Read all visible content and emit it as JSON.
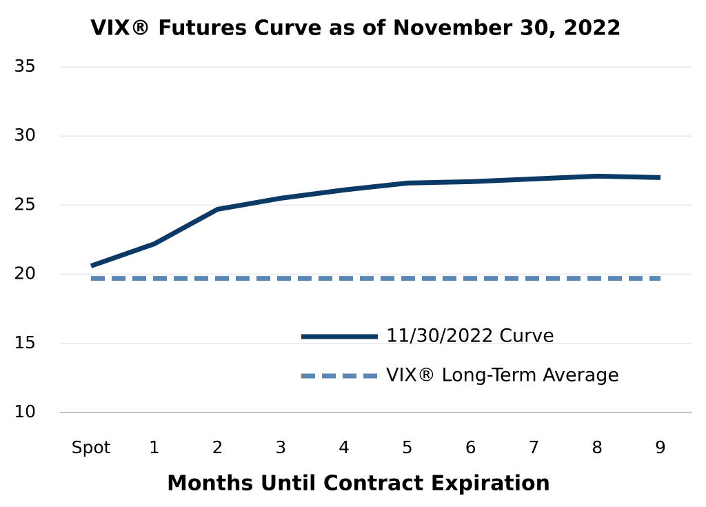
{
  "chart_data": {
    "type": "line",
    "title": "VIX® Futures Curve as of November 30, 2022",
    "x_label": "Months Until Contract Expiration",
    "categories": [
      "Spot",
      "1",
      "2",
      "3",
      "4",
      "5",
      "6",
      "7",
      "8",
      "9"
    ],
    "series": [
      {
        "name": "11/30/2022 Curve",
        "color": "#0b3a66",
        "dashed": false,
        "values": [
          20.6,
          22.2,
          24.7,
          25.5,
          26.1,
          26.6,
          26.7,
          26.9,
          27.1,
          27.0
        ]
      },
      {
        "name": "VIX® Long-Term Average",
        "color": "#5b87b5",
        "dashed": true,
        "values": [
          19.7,
          19.7,
          19.7,
          19.7,
          19.7,
          19.7,
          19.7,
          19.7,
          19.7,
          19.7
        ]
      }
    ],
    "ylim": [
      10,
      35
    ],
    "yticks": [
      10,
      15,
      20,
      25,
      30,
      35
    ],
    "grid": true,
    "legend": "right"
  }
}
